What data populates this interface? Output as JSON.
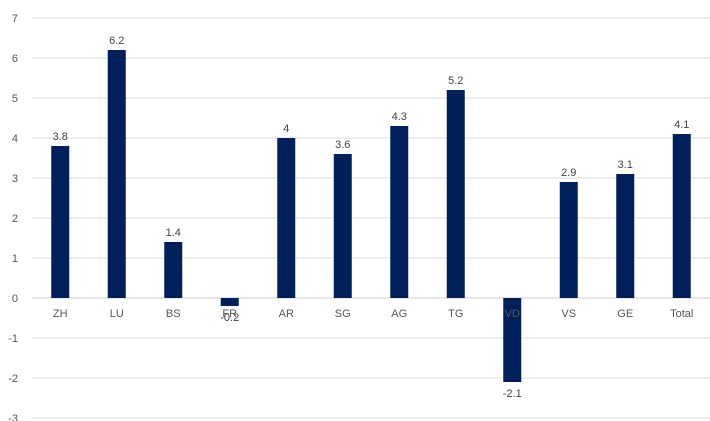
{
  "chart_data": {
    "type": "bar",
    "title": "",
    "xlabel": "",
    "ylabel": "",
    "categories": [
      "ZH",
      "LU",
      "BS",
      "FR",
      "AR",
      "SG",
      "AG",
      "TG",
      "VD",
      "VS",
      "GE",
      "Total"
    ],
    "values": [
      3.8,
      6.2,
      1.4,
      -0.2,
      4,
      3.6,
      4.3,
      5.2,
      -2.1,
      2.9,
      3.1,
      4.1
    ],
    "value_labels": [
      "3.8",
      "6.2",
      "1.4",
      "-0.2",
      "4",
      "3.6",
      "4.3",
      "5.2",
      "-2.1",
      "2.9",
      "3.1",
      "4.1"
    ],
    "ylim": [
      -3,
      7
    ],
    "yticks": [
      7,
      6,
      5,
      4,
      3,
      2,
      1,
      0,
      -1,
      -2,
      -3
    ],
    "grid": true,
    "legend": "none",
    "bar_color": "#00205b"
  }
}
